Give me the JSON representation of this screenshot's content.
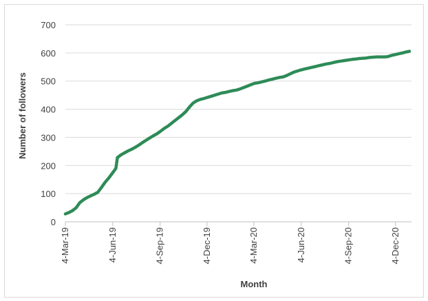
{
  "chart_data": {
    "type": "line",
    "title": "",
    "xlabel": "Month",
    "ylabel": "Number of followers",
    "ylim": [
      0,
      700
    ],
    "yticks": [
      0,
      100,
      200,
      300,
      400,
      500,
      600,
      700
    ],
    "xlim": [
      "2019-03-04",
      "2021-01-04"
    ],
    "xticks": [
      {
        "date": "2019-03-04",
        "label": "4-Mar-19"
      },
      {
        "date": "2019-06-04",
        "label": "4-Jun-19"
      },
      {
        "date": "2019-09-04",
        "label": "4-Sep-19"
      },
      {
        "date": "2019-12-04",
        "label": "4-Dec-19"
      },
      {
        "date": "2020-03-04",
        "label": "4-Mar-20"
      },
      {
        "date": "2020-06-04",
        "label": "4-Jun-20"
      },
      {
        "date": "2020-09-04",
        "label": "4-Sep-20"
      },
      {
        "date": "2020-12-04",
        "label": "4-Dec-20"
      }
    ],
    "grid": true,
    "line_color": "#2e8b57",
    "series": [
      {
        "points": [
          [
            "2019-03-04",
            28
          ],
          [
            "2019-03-11",
            33
          ],
          [
            "2019-03-18",
            40
          ],
          [
            "2019-03-25",
            50
          ],
          [
            "2019-04-01",
            68
          ],
          [
            "2019-04-08",
            78
          ],
          [
            "2019-04-15",
            86
          ],
          [
            "2019-04-22",
            92
          ],
          [
            "2019-04-29",
            98
          ],
          [
            "2019-05-06",
            105
          ],
          [
            "2019-05-13",
            122
          ],
          [
            "2019-05-20",
            140
          ],
          [
            "2019-05-27",
            155
          ],
          [
            "2019-06-03",
            172
          ],
          [
            "2019-06-10",
            190
          ],
          [
            "2019-06-13",
            228
          ],
          [
            "2019-06-20",
            238
          ],
          [
            "2019-06-27",
            245
          ],
          [
            "2019-07-04",
            252
          ],
          [
            "2019-07-11",
            258
          ],
          [
            "2019-07-18",
            265
          ],
          [
            "2019-07-25",
            273
          ],
          [
            "2019-08-01",
            282
          ],
          [
            "2019-08-08",
            290
          ],
          [
            "2019-08-15",
            298
          ],
          [
            "2019-08-22",
            306
          ],
          [
            "2019-08-29",
            313
          ],
          [
            "2019-09-05",
            322
          ],
          [
            "2019-09-12",
            332
          ],
          [
            "2019-09-19",
            340
          ],
          [
            "2019-09-26",
            350
          ],
          [
            "2019-10-03",
            360
          ],
          [
            "2019-10-10",
            370
          ],
          [
            "2019-10-17",
            380
          ],
          [
            "2019-10-24",
            392
          ],
          [
            "2019-10-31",
            408
          ],
          [
            "2019-11-07",
            422
          ],
          [
            "2019-11-14",
            430
          ],
          [
            "2019-11-21",
            435
          ],
          [
            "2019-11-28",
            438
          ],
          [
            "2019-12-05",
            442
          ],
          [
            "2019-12-12",
            446
          ],
          [
            "2019-12-19",
            450
          ],
          [
            "2019-12-26",
            454
          ],
          [
            "2020-01-02",
            458
          ],
          [
            "2020-01-09",
            460
          ],
          [
            "2020-01-16",
            463
          ],
          [
            "2020-01-23",
            466
          ],
          [
            "2020-01-30",
            468
          ],
          [
            "2020-02-06",
            472
          ],
          [
            "2020-02-13",
            477
          ],
          [
            "2020-02-20",
            482
          ],
          [
            "2020-02-27",
            487
          ],
          [
            "2020-03-05",
            492
          ],
          [
            "2020-03-12",
            494
          ],
          [
            "2020-03-19",
            497
          ],
          [
            "2020-03-26",
            500
          ],
          [
            "2020-04-02",
            504
          ],
          [
            "2020-04-09",
            507
          ],
          [
            "2020-04-16",
            510
          ],
          [
            "2020-04-23",
            513
          ],
          [
            "2020-04-30",
            515
          ],
          [
            "2020-05-07",
            520
          ],
          [
            "2020-05-14",
            526
          ],
          [
            "2020-05-21",
            532
          ],
          [
            "2020-05-28",
            536
          ],
          [
            "2020-06-04",
            540
          ],
          [
            "2020-06-11",
            543
          ],
          [
            "2020-06-18",
            546
          ],
          [
            "2020-06-25",
            549
          ],
          [
            "2020-07-02",
            552
          ],
          [
            "2020-07-09",
            555
          ],
          [
            "2020-07-16",
            558
          ],
          [
            "2020-07-23",
            561
          ],
          [
            "2020-07-30",
            563
          ],
          [
            "2020-08-06",
            566
          ],
          [
            "2020-08-13",
            569
          ],
          [
            "2020-08-20",
            571
          ],
          [
            "2020-08-27",
            573
          ],
          [
            "2020-09-03",
            575
          ],
          [
            "2020-09-10",
            577
          ],
          [
            "2020-09-17",
            578
          ],
          [
            "2020-09-24",
            580
          ],
          [
            "2020-10-01",
            581
          ],
          [
            "2020-10-08",
            582
          ],
          [
            "2020-10-15",
            584
          ],
          [
            "2020-10-22",
            585
          ],
          [
            "2020-10-29",
            586
          ],
          [
            "2020-11-05",
            586
          ],
          [
            "2020-11-12",
            586
          ],
          [
            "2020-11-19",
            587
          ],
          [
            "2020-11-26",
            591
          ],
          [
            "2020-12-03",
            594
          ],
          [
            "2020-12-10",
            597
          ],
          [
            "2020-12-17",
            600
          ],
          [
            "2020-12-24",
            603
          ],
          [
            "2020-12-31",
            606
          ]
        ]
      }
    ]
  }
}
